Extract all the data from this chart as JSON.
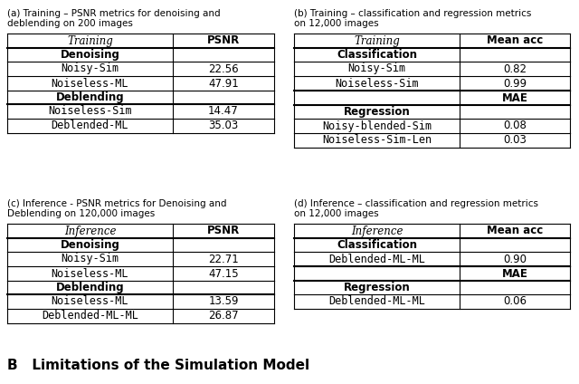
{
  "table_a": {
    "caption": "(a) Training – PSNR metrics for denoising and\ndeblending on 200 images",
    "header_col": "Training",
    "header_val": "PSNR",
    "sections": [
      {
        "section_label": "Denoising",
        "rows": [
          [
            "Noisy-Sim",
            "22.56"
          ],
          [
            "Noiseless-ML",
            "47.91"
          ]
        ]
      },
      {
        "section_label": "Deblending",
        "rows": [
          [
            "Noiseless-Sim",
            "14.47"
          ],
          [
            "Deblended-ML",
            "35.03"
          ]
        ]
      }
    ]
  },
  "table_b": {
    "caption": "(b) Training – classification and regression metrics\non 12,000 images",
    "header_col": "Training",
    "section1": {
      "section_label": "Classification",
      "header_val": "Mean acc",
      "rows": [
        [
          "Noisy-Sim",
          "0.82"
        ],
        [
          "Noiseless-Sim",
          "0.99"
        ]
      ]
    },
    "section2": {
      "section_label": "Regression",
      "header_val": "MAE",
      "rows": [
        [
          "Noisy-blended-Sim",
          "0.08"
        ],
        [
          "Noiseless-Sim-Len",
          "0.03"
        ]
      ]
    }
  },
  "table_c": {
    "caption": "(c) Inference - PSNR metrics for Denoising and\nDeblending on 120,000 images",
    "header_col": "Inference",
    "header_val": "PSNR",
    "sections": [
      {
        "section_label": "Denoising",
        "rows": [
          [
            "Noisy-Sim",
            "22.71"
          ],
          [
            "Noiseless-ML",
            "47.15"
          ]
        ]
      },
      {
        "section_label": "Deblending",
        "rows": [
          [
            "Noiseless-ML",
            "13.59"
          ],
          [
            "Deblended-ML-ML",
            "26.87"
          ]
        ]
      }
    ]
  },
  "table_d": {
    "caption": "(d) Inference – classification and regression metrics\non 12,000 images",
    "header_col": "Inference",
    "section1": {
      "section_label": "Classification",
      "header_val": "Mean acc",
      "rows": [
        [
          "Deblended-ML-ML",
          "0.90"
        ]
      ]
    },
    "section2": {
      "section_label": "Regression",
      "header_val": "MAE",
      "rows": [
        [
          "Deblended-ML-ML",
          "0.06"
        ]
      ]
    }
  },
  "footer": "B   Limitations of the Simulation Model"
}
